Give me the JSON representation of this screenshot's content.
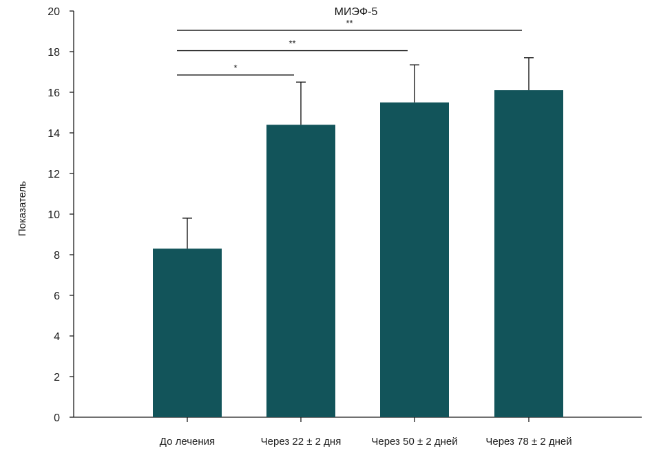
{
  "chart_data": {
    "type": "bar",
    "title": "МИЭФ-5",
    "xlabel": "",
    "ylabel": "Показатель",
    "ylim": [
      0,
      20
    ],
    "yticks": [
      0,
      2,
      4,
      6,
      8,
      10,
      12,
      14,
      16,
      18,
      20
    ],
    "categories": [
      "До лечения",
      "Через 22 ± 2 дня",
      "Через 50 ± 2 дней",
      "Через 78 ± 2 дней"
    ],
    "values": [
      8.3,
      14.4,
      15.5,
      16.1
    ],
    "error_upper": [
      1.5,
      2.1,
      1.85,
      1.6
    ],
    "bar_color": "#12545a",
    "grid": false,
    "significance": [
      {
        "from": 0,
        "to": 1,
        "label": "*",
        "y": 16.85
      },
      {
        "from": 0,
        "to": 2,
        "label": "**",
        "y": 18.05
      },
      {
        "from": 0,
        "to": 3,
        "label": "**",
        "y": 19.05
      }
    ]
  }
}
